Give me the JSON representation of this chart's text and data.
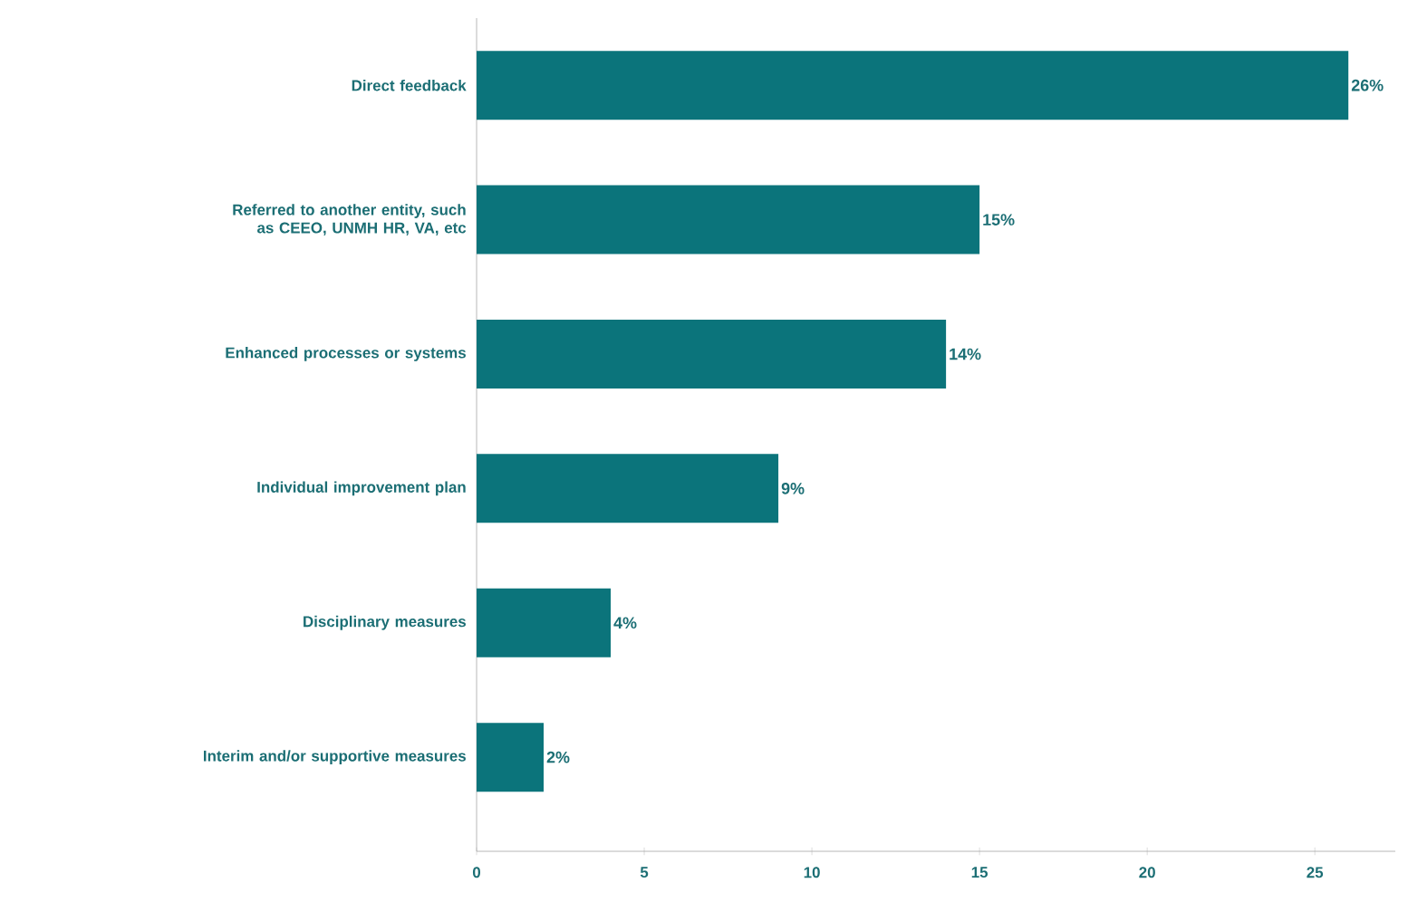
{
  "chart_data": {
    "type": "bar",
    "orientation": "horizontal",
    "categories": [
      "Direct feedback",
      "Referred to another entity, such as CEEO, UNMH HR, VA, etc",
      "Enhanced processes or systems",
      "Individual improvement plan",
      "Disciplinary measures",
      "Interim and/or supportive measures"
    ],
    "values": [
      26,
      15,
      14,
      9,
      4,
      2
    ],
    "value_labels": [
      "26%",
      "15%",
      "14%",
      "9%",
      "4%",
      "2%"
    ],
    "color": "#0b747b",
    "xlim": [
      0,
      27.4
    ],
    "xticks": [
      0,
      5,
      10,
      15,
      20,
      25
    ]
  }
}
